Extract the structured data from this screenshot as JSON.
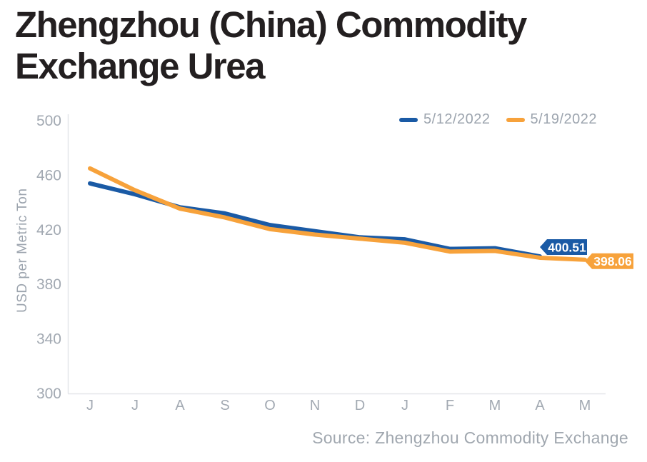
{
  "header": {
    "title_line1": "Zhengzhou (China) Commodity",
    "title_line2": "Exchange Urea"
  },
  "legend": {
    "items": [
      {
        "label": "5/12/2022",
        "color": "#1A5AA5"
      },
      {
        "label": "5/19/2022",
        "color": "#F7A23B"
      }
    ]
  },
  "footer": {
    "source": "Source: Zhengzhou Commodity Exchange"
  },
  "chart_data": {
    "type": "line",
    "title": "Zhengzhou (China) Commodity Exchange Urea",
    "categories": [
      "J",
      "J",
      "A",
      "S",
      "O",
      "N",
      "D",
      "J",
      "F",
      "M",
      "A",
      "M"
    ],
    "series": [
      {
        "name": "5/12/2022",
        "color": "#1A5AA5",
        "values": [
          454,
          446,
          436.5,
          432,
          423.5,
          419,
          414.5,
          413,
          406,
          406.5,
          400.51
        ],
        "end_label": "400.51"
      },
      {
        "name": "5/19/2022",
        "color": "#F7A23B",
        "values": [
          465,
          449,
          435.5,
          429,
          420.5,
          416.5,
          413.5,
          410.5,
          404,
          404.5,
          399.5,
          398.06
        ],
        "end_label": "398.06"
      }
    ],
    "xlabel": "",
    "ylabel": "USD per Metric Ton",
    "ylim": [
      300,
      500
    ],
    "yticks": [
      300,
      340,
      380,
      420,
      460,
      500
    ],
    "grid": false,
    "legend_position": "top-right",
    "axis_color": "#E4E6E9",
    "tick_color": "#A2A9B2",
    "label_text_color": "#FFFFFF"
  }
}
